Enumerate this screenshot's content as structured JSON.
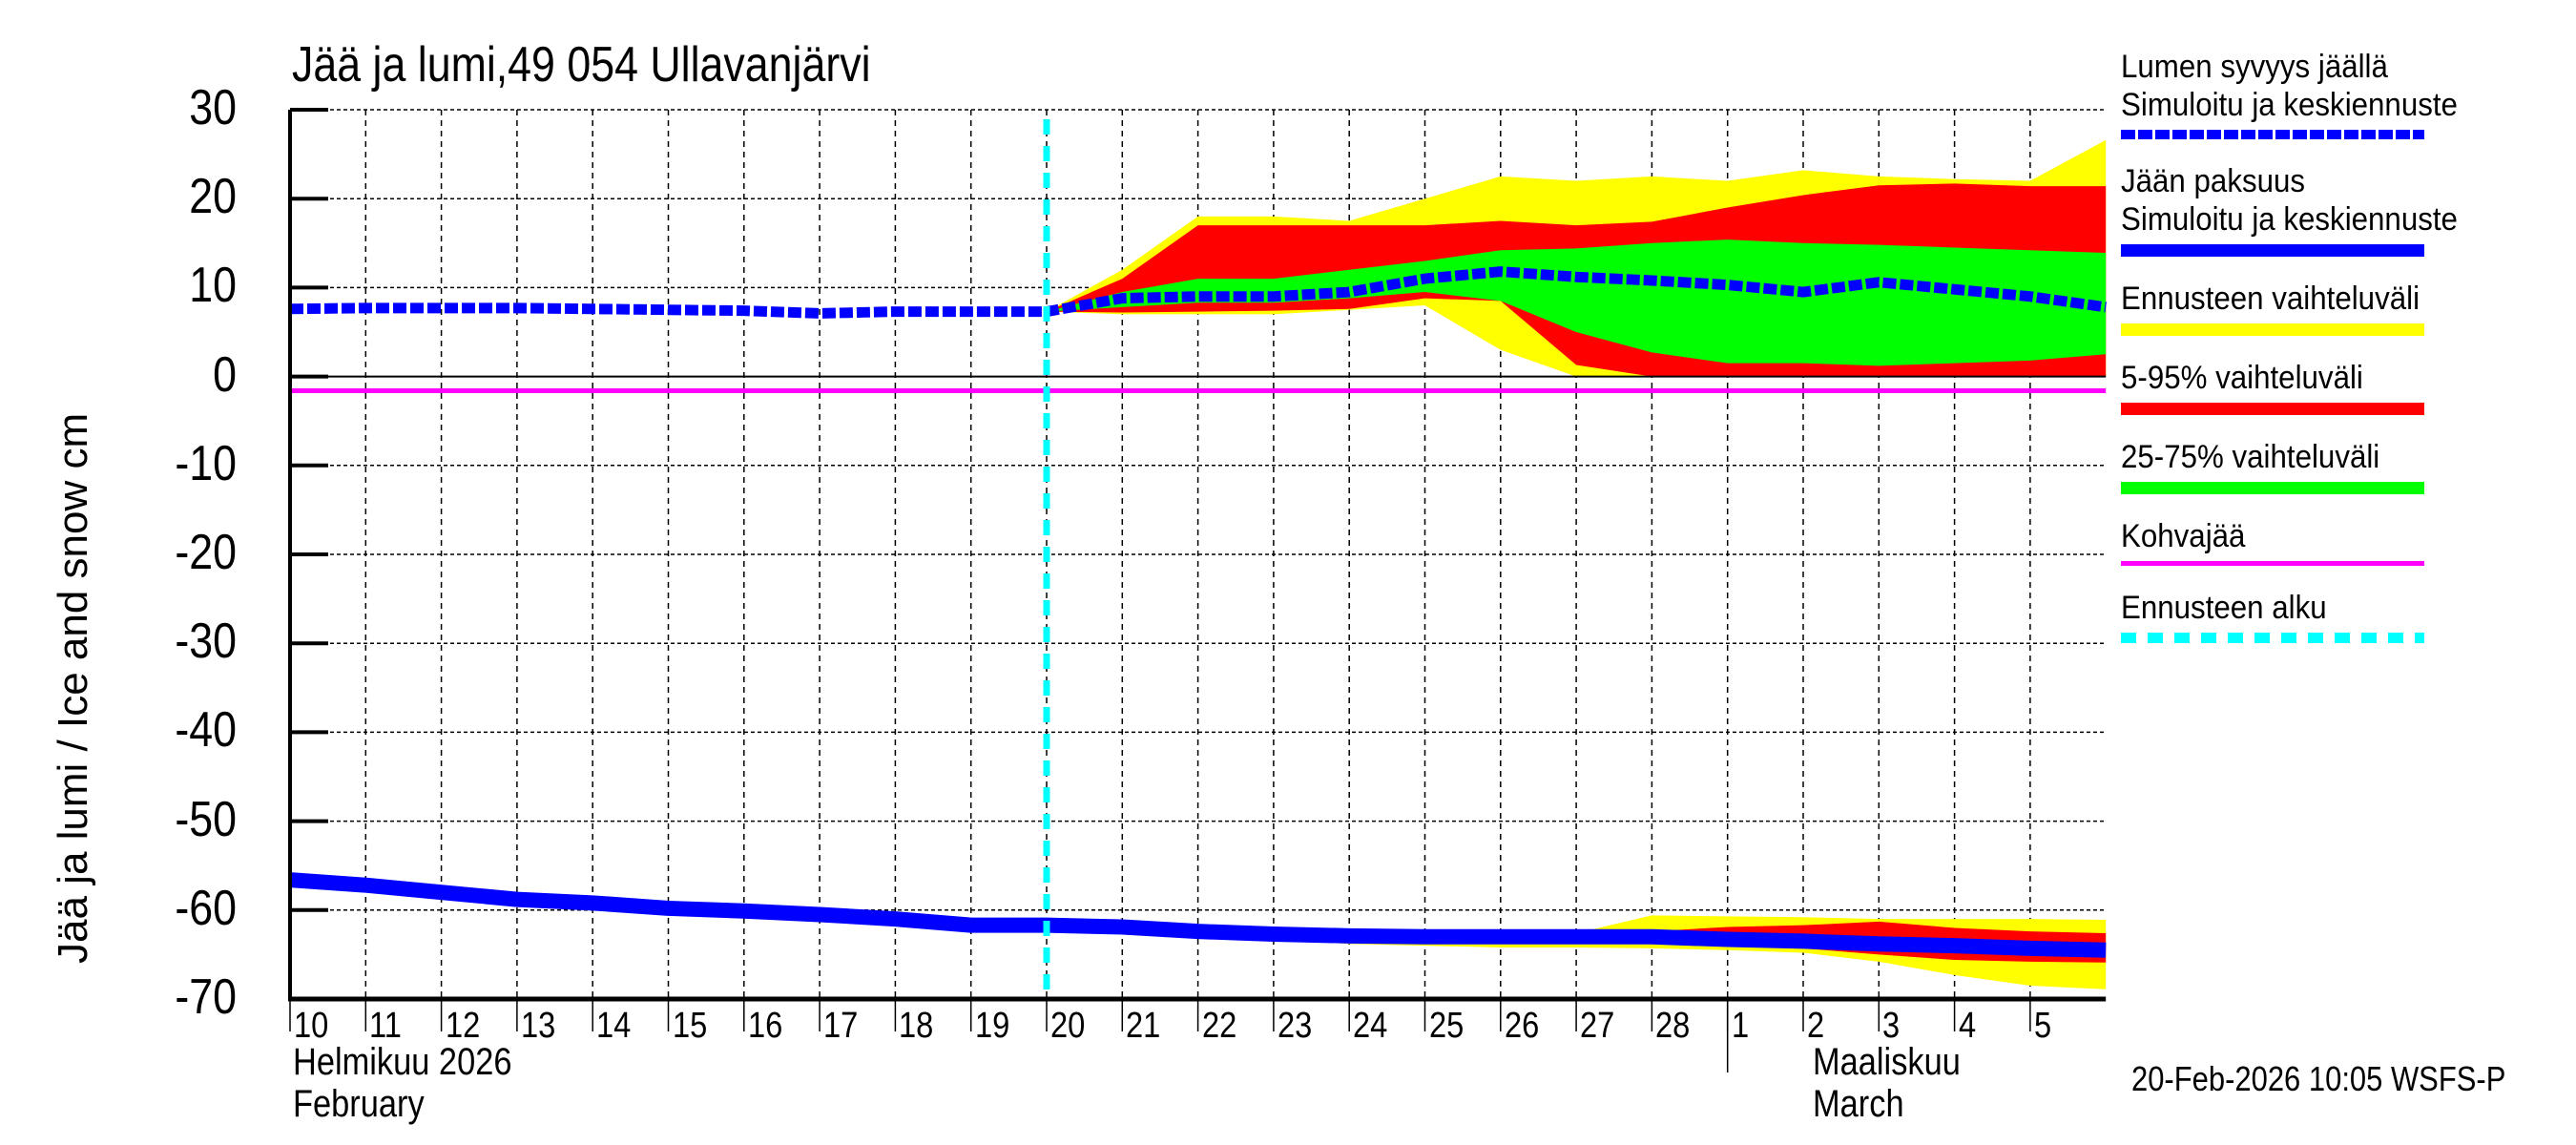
{
  "title": "Jää ja lumi,49 054 Ullavanjärvi",
  "y_axis_label": "Jää ja lumi / Ice and snow    cm",
  "timestamp": "20-Feb-2026 10:05 WSFS-P",
  "x_axis": {
    "day_labels": [
      "10",
      "11",
      "12",
      "13",
      "14",
      "15",
      "16",
      "17",
      "18",
      "19",
      "20",
      "21",
      "22",
      "23",
      "24",
      "25",
      "26",
      "27",
      "28",
      "1",
      "2",
      "3",
      "4",
      "5"
    ],
    "month_left": {
      "fi": "Helmikuu  2026",
      "en": "February"
    },
    "month_right": {
      "fi": "Maaliskuu",
      "en": "March"
    }
  },
  "y_axis": {
    "ticks": [
      "30",
      "20",
      "10",
      "0",
      "-10",
      "-20",
      "-30",
      "-40",
      "-50",
      "-60",
      "-70"
    ]
  },
  "legend": {
    "items": [
      {
        "label1": "Lumen syvyys jäällä",
        "label2": "Simuloitu ja keskiennuste",
        "color": "#0000ff",
        "style": "dotted-thick"
      },
      {
        "label1": "Jään paksuus",
        "label2": "Simuloitu ja keskiennuste",
        "color": "#0000ff",
        "style": "solid-thick"
      },
      {
        "label1": "Ennusteen vaihteluväli",
        "label2": "",
        "color": "#ffff00",
        "style": "solid-thick"
      },
      {
        "label1": "5-95% vaihteluväli",
        "label2": "",
        "color": "#ff0000",
        "style": "solid-thick"
      },
      {
        "label1": "25-75% vaihteluväli",
        "label2": "",
        "color": "#00ff00",
        "style": "solid-thick"
      },
      {
        "label1": "Kohvajää",
        "label2": "",
        "color": "#ff00ff",
        "style": "solid-thin"
      },
      {
        "label1": "Ennusteen alku",
        "label2": "",
        "color": "#00ffff",
        "style": "dashed-thick"
      }
    ]
  },
  "colors": {
    "snow": "#0000ff",
    "ice": "#0000ff",
    "range": "#ffff00",
    "p5_95": "#ff0000",
    "p25_75": "#00ff00",
    "slush": "#ff00ff",
    "forecast_start": "#00ffff"
  },
  "chart_data": {
    "type": "area",
    "title": "Jää ja lumi,49 054 Ullavanjärvi",
    "xlabel": "Helmikuu 2026 / February — Maaliskuu / March",
    "ylabel": "Jää ja lumi / Ice and snow cm",
    "ylim": [
      -70,
      30
    ],
    "xlim": [
      "2026-02-10",
      "2026-03-06"
    ],
    "grid": true,
    "legend_position": "right",
    "forecast_start": "2026-02-20",
    "slush_ice_level": -1.6,
    "x": [
      "02-10",
      "02-11",
      "02-12",
      "02-13",
      "02-14",
      "02-15",
      "02-16",
      "02-17",
      "02-18",
      "02-19",
      "02-20",
      "02-21",
      "02-22",
      "02-23",
      "02-24",
      "02-25",
      "02-26",
      "02-27",
      "02-28",
      "03-01",
      "03-02",
      "03-03",
      "03-04",
      "03-05",
      "03-06"
    ],
    "series": [
      {
        "name": "Lumen syvyys jäällä – simuloitu ja keskiennuste",
        "values": [
          7.6,
          7.7,
          7.7,
          7.7,
          7.6,
          7.5,
          7.4,
          7.1,
          7.3,
          7.3,
          7.3,
          8.8,
          9.0,
          9.0,
          9.5,
          11.0,
          11.8,
          11.2,
          10.8,
          10.3,
          9.5,
          10.6,
          9.8,
          9.0,
          7.8
        ]
      },
      {
        "name": "Jään paksuus – simuloitu ja keskiennuste",
        "values": [
          -56.6,
          -57.2,
          -58.0,
          -58.8,
          -59.2,
          -59.8,
          -60.1,
          -60.5,
          -61.0,
          -61.7,
          -61.7,
          -61.9,
          -62.4,
          -62.7,
          -62.9,
          -63.0,
          -63.0,
          -63.0,
          -63.0,
          -63.3,
          -63.5,
          -63.8,
          -64.0,
          -64.3,
          -64.5
        ]
      },
      {
        "name": "Lumi: Ennusteen vaihteluväli (min)",
        "values": [
          null,
          null,
          null,
          null,
          null,
          null,
          null,
          null,
          null,
          null,
          7.3,
          7.0,
          7.0,
          7.0,
          7.5,
          8.0,
          3.0,
          0.0,
          0.0,
          0.0,
          0.0,
          0.0,
          0.0,
          0.0,
          0.0
        ]
      },
      {
        "name": "Lumi: Ennusteen vaihteluväli (max)",
        "values": [
          null,
          null,
          null,
          null,
          null,
          null,
          null,
          null,
          null,
          null,
          7.3,
          12.0,
          18.0,
          18.0,
          17.5,
          20.0,
          22.5,
          22.0,
          22.5,
          22.0,
          23.2,
          22.5,
          22.2,
          22.0,
          26.6
        ]
      },
      {
        "name": "Lumi: 5-95% (low)",
        "values": [
          null,
          null,
          null,
          null,
          null,
          null,
          null,
          null,
          null,
          null,
          7.3,
          7.2,
          7.3,
          7.4,
          7.6,
          8.8,
          8.5,
          1.3,
          0.0,
          0.0,
          0.0,
          0.0,
          0.0,
          0.0,
          0.0
        ]
      },
      {
        "name": "Lumi: 5-95% (high)",
        "values": [
          null,
          null,
          null,
          null,
          null,
          null,
          null,
          null,
          null,
          null,
          7.3,
          11.0,
          17.0,
          17.0,
          17.0,
          17.0,
          17.5,
          17.0,
          17.4,
          19.0,
          20.4,
          21.5,
          21.7,
          21.4,
          21.4
        ]
      },
      {
        "name": "Lumi: 25-75% (low)",
        "values": [
          null,
          null,
          null,
          null,
          null,
          null,
          null,
          null,
          null,
          null,
          7.3,
          7.8,
          8.3,
          8.3,
          8.8,
          9.5,
          8.5,
          5.0,
          2.7,
          1.5,
          1.5,
          1.2,
          1.5,
          1.8,
          2.5
        ]
      },
      {
        "name": "Lumi: 25-75% (high)",
        "values": [
          null,
          null,
          null,
          null,
          null,
          null,
          null,
          null,
          null,
          null,
          7.3,
          9.5,
          11.0,
          11.0,
          12.0,
          13.0,
          14.2,
          14.4,
          15.0,
          15.4,
          15.0,
          14.8,
          14.5,
          14.2,
          13.9
        ]
      },
      {
        "name": "Jää: Ennusteen vaihteluväli (min)",
        "values": [
          null,
          null,
          null,
          null,
          null,
          null,
          null,
          null,
          null,
          null,
          -61.7,
          -62.0,
          -62.5,
          -63.2,
          -63.8,
          -64.0,
          -64.2,
          -64.2,
          -64.3,
          -64.5,
          -64.8,
          -65.8,
          -67.3,
          -68.5,
          -68.9
        ]
      },
      {
        "name": "Jää: Ennusteen vaihteluväli (max)",
        "values": [
          null,
          null,
          null,
          null,
          null,
          null,
          null,
          null,
          null,
          null,
          -61.7,
          -61.8,
          -62.2,
          -62.6,
          -62.6,
          -62.6,
          -62.7,
          -62.6,
          -60.6,
          -60.7,
          -60.8,
          -61.0,
          -61.0,
          -61.0,
          -61.1
        ]
      },
      {
        "name": "Jää: 5-95% (low)",
        "values": [
          null,
          null,
          null,
          null,
          null,
          null,
          null,
          null,
          null,
          null,
          -61.7,
          -61.9,
          -62.4,
          -63.0,
          -63.2,
          -63.4,
          -63.6,
          -63.6,
          -63.8,
          -64.0,
          -64.3,
          -65.0,
          -65.6,
          -65.8,
          -65.9
        ]
      },
      {
        "name": "Jää: 5-95% (high)",
        "values": [
          null,
          null,
          null,
          null,
          null,
          null,
          null,
          null,
          null,
          null,
          -61.7,
          -61.9,
          -62.3,
          -62.7,
          -62.8,
          -62.9,
          -62.9,
          -62.8,
          -62.4,
          -61.9,
          -61.7,
          -61.3,
          -62.0,
          -62.4,
          -62.6
        ]
      }
    ]
  }
}
